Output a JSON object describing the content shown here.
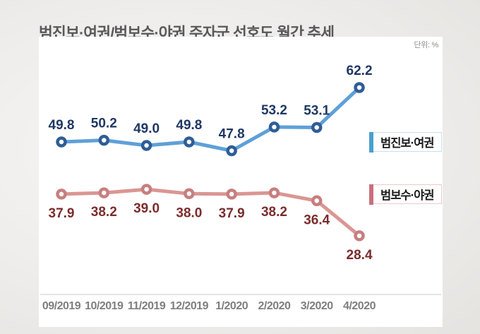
{
  "title": "범진보·여권/범보수·야권 주자군 선호도 월간 추세",
  "unit_label": "단위: %",
  "background_color": "#efedeb",
  "card_color": "#ffffff",
  "axis_line_color": "#dbdbdb",
  "x_label_color": "#7f7f7f",
  "chart_data": {
    "type": "line",
    "title": "범진보·여권/범보수·야권 주자군 선호도 월간 추세",
    "xlabel": "",
    "ylabel": "단위: %",
    "categories": [
      "09/2019",
      "10/2019",
      "11/2019",
      "12/2019",
      "1/2020",
      "2/2020",
      "3/2020",
      "4/2020"
    ],
    "series": [
      {
        "name": "범진보·여권",
        "values": [
          49.8,
          50.2,
          49.0,
          49.8,
          47.8,
          53.2,
          53.1,
          62.2
        ],
        "line_color": "#5fa0d8",
        "marker_ring_color": "#2f5d96",
        "label_color": "#1f3864",
        "label_side": "above",
        "legend_bar_color": "#4aa0cd",
        "legend_border_color": "#c8dfef"
      },
      {
        "name": "범보수·야권",
        "values": [
          37.9,
          38.2,
          39.0,
          38.0,
          37.9,
          38.2,
          36.4,
          28.4
        ],
        "line_color": "#da9694",
        "marker_ring_color": "#c77f7f",
        "label_color": "#7b2c2c",
        "label_side": "below",
        "legend_bar_color": "#c9707c",
        "legend_border_color": "#f1c9cd"
      }
    ],
    "grid": false,
    "y_axis_visible": false,
    "ylim_implied": [
      24,
      68
    ],
    "legend_position": "inside-right"
  }
}
